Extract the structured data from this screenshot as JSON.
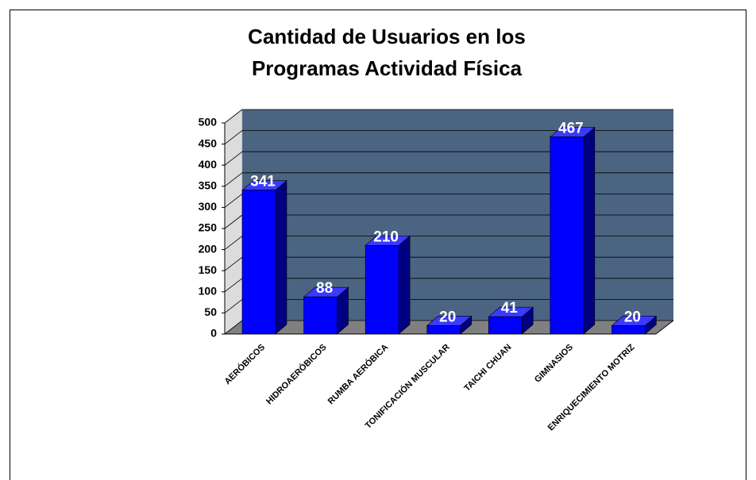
{
  "chart_data": {
    "type": "bar3d",
    "title": [
      "Cantidad de Usuarios en los",
      "Programas Actividad Física"
    ],
    "categories": [
      "AERÓBICOS",
      "HIDROAERÓBICOS",
      "RUMBA AERÓBICA",
      "TONIFICACIÓN MUSCULAR",
      "TAICHI CHUAN",
      "GIMNASIOS",
      "ENRIQUECIMIENTO MOTRIZ"
    ],
    "values": [
      341,
      88,
      210,
      20,
      41,
      467,
      20
    ],
    "color": "#0000ff",
    "ylim": [
      0,
      500
    ],
    "yticks": [
      0,
      50,
      100,
      150,
      200,
      250,
      300,
      350,
      400,
      450,
      500
    ],
    "grid": true
  }
}
